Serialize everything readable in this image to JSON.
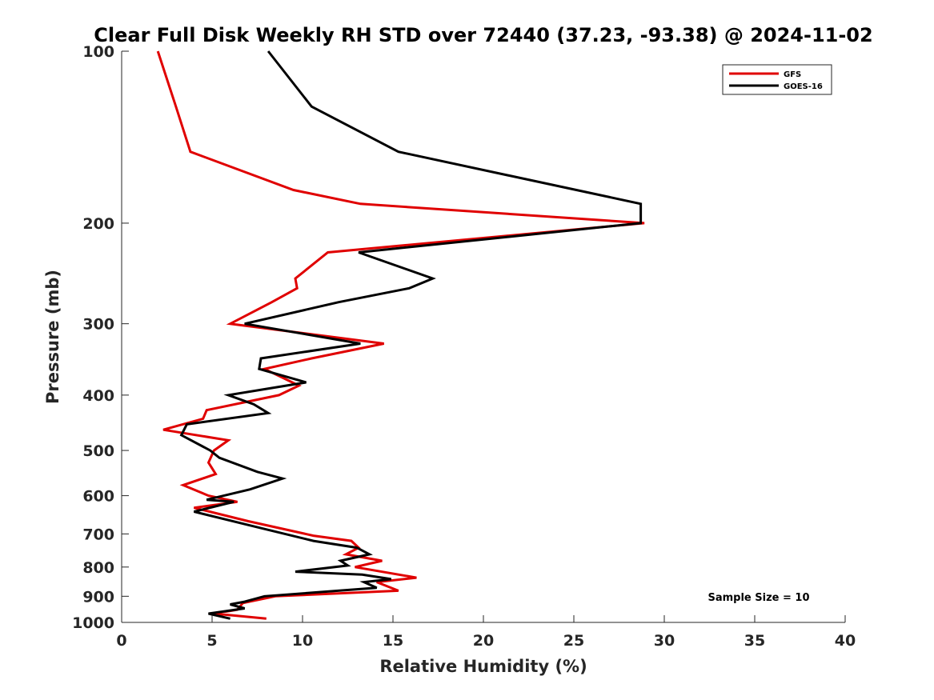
{
  "chart_data": {
    "type": "line",
    "title": "Clear Full Disk Weekly RH STD over 72440 (37.23, -93.38) @ 2024-11-02",
    "xlabel": "Relative Humidity (%)",
    "ylabel": "Pressure (mb)",
    "xlim": [
      0,
      40
    ],
    "ylim": [
      100,
      1000
    ],
    "y_scale": "log",
    "y_reversed": true,
    "grid": false,
    "legend_placement": "top-right",
    "x_ticks": [
      "0",
      "5",
      "10",
      "15",
      "20",
      "25",
      "30",
      "35",
      "40"
    ],
    "x_tick_values": [
      0,
      5,
      10,
      15,
      20,
      25,
      30,
      35,
      40
    ],
    "y_ticks": [
      "100",
      "200",
      "300",
      "400",
      "500",
      "600",
      "700",
      "800",
      "900",
      "1000"
    ],
    "y_tick_values": [
      100,
      200,
      300,
      400,
      500,
      600,
      700,
      800,
      900,
      1000
    ],
    "annotation": "Sample Size = 10",
    "series": [
      {
        "name": "GFS",
        "color": "#e00000",
        "points": [
          [
            2.0,
            100
          ],
          [
            3.0,
            125
          ],
          [
            3.8,
            150
          ],
          [
            9.5,
            175
          ],
          [
            13.2,
            185
          ],
          [
            28.9,
            200
          ],
          [
            11.4,
            225
          ],
          [
            9.6,
            250
          ],
          [
            9.7,
            260
          ],
          [
            8.3,
            275
          ],
          [
            6.0,
            300
          ],
          [
            14.5,
            325
          ],
          [
            10.5,
            345
          ],
          [
            7.9,
            360
          ],
          [
            9.8,
            385
          ],
          [
            8.7,
            400
          ],
          [
            4.7,
            425
          ],
          [
            4.5,
            440
          ],
          [
            2.3,
            460
          ],
          [
            5.9,
            480
          ],
          [
            5.1,
            500
          ],
          [
            4.8,
            525
          ],
          [
            5.2,
            550
          ],
          [
            3.4,
            575
          ],
          [
            4.8,
            600
          ],
          [
            6.4,
            615
          ],
          [
            4.0,
            630
          ],
          [
            7.0,
            665
          ],
          [
            10.6,
            705
          ],
          [
            12.7,
            720
          ],
          [
            13.1,
            740
          ],
          [
            12.4,
            760
          ],
          [
            14.4,
            780
          ],
          [
            12.9,
            800
          ],
          [
            16.3,
            835
          ],
          [
            14.1,
            850
          ],
          [
            15.3,
            880
          ],
          [
            8.5,
            900
          ],
          [
            6.7,
            925
          ],
          [
            6.4,
            950
          ],
          [
            5.1,
            965
          ],
          [
            8.0,
            985
          ]
        ]
      },
      {
        "name": "GOES-16",
        "color": "#000000",
        "points": [
          [
            8.1,
            100
          ],
          [
            10.5,
            125
          ],
          [
            15.3,
            150
          ],
          [
            28.7,
            185
          ],
          [
            28.7,
            200
          ],
          [
            13.1,
            225
          ],
          [
            17.2,
            250
          ],
          [
            15.9,
            260
          ],
          [
            12.0,
            275
          ],
          [
            6.8,
            300
          ],
          [
            13.2,
            325
          ],
          [
            7.7,
            345
          ],
          [
            7.6,
            360
          ],
          [
            10.2,
            380
          ],
          [
            5.9,
            400
          ],
          [
            7.3,
            415
          ],
          [
            8.1,
            430
          ],
          [
            3.6,
            450
          ],
          [
            3.3,
            470
          ],
          [
            4.9,
            500
          ],
          [
            5.4,
            515
          ],
          [
            7.5,
            545
          ],
          [
            8.9,
            560
          ],
          [
            7.1,
            585
          ],
          [
            4.7,
            610
          ],
          [
            6.2,
            615
          ],
          [
            4.0,
            640
          ],
          [
            7.4,
            680
          ],
          [
            10.6,
            720
          ],
          [
            13.0,
            740
          ],
          [
            13.7,
            760
          ],
          [
            12.1,
            780
          ],
          [
            12.5,
            795
          ],
          [
            9.6,
            815
          ],
          [
            13.3,
            825
          ],
          [
            14.9,
            840
          ],
          [
            13.4,
            850
          ],
          [
            14.1,
            870
          ],
          [
            7.9,
            900
          ],
          [
            6.8,
            920
          ],
          [
            6.0,
            930
          ],
          [
            6.8,
            945
          ],
          [
            4.8,
            965
          ],
          [
            6.0,
            985
          ]
        ]
      }
    ]
  }
}
